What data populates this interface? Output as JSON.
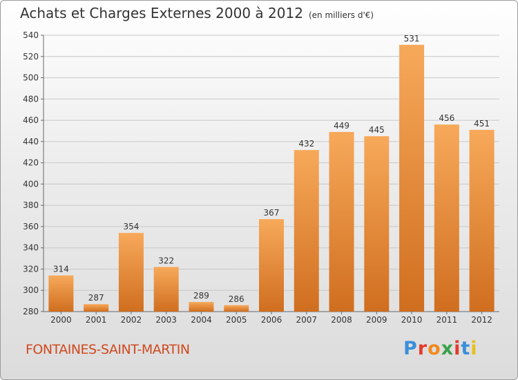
{
  "header": {
    "title": "Achats et Charges Externes 2000 à 2012",
    "unit": "(en milliers d'€)"
  },
  "footer": {
    "commune": "FONTAINES-SAINT-MARTIN",
    "logo_text": "Proxiti",
    "logo_colors": [
      "#3a8fd9",
      "#e23b2d",
      "#f28a1c",
      "#3aa14a",
      "#e23b2d",
      "#3a8fd9",
      "#e8c11a"
    ]
  },
  "colors": {
    "bar_light": "#f7a95a",
    "bar_dark": "#d06e1f",
    "grid": "#c8c8c8",
    "text": "#333333"
  },
  "chart_data": {
    "type": "bar",
    "categories": [
      "2000",
      "2001",
      "2002",
      "2003",
      "2004",
      "2005",
      "2006",
      "2007",
      "2008",
      "2009",
      "2010",
      "2011",
      "2012"
    ],
    "values": [
      314,
      287,
      354,
      322,
      289,
      286,
      367,
      432,
      449,
      445,
      531,
      456,
      451
    ],
    "ylim": [
      280,
      540
    ],
    "yticks": [
      280,
      300,
      320,
      340,
      360,
      380,
      400,
      420,
      440,
      460,
      480,
      500,
      520,
      540
    ],
    "grid": true,
    "legend": "none"
  }
}
